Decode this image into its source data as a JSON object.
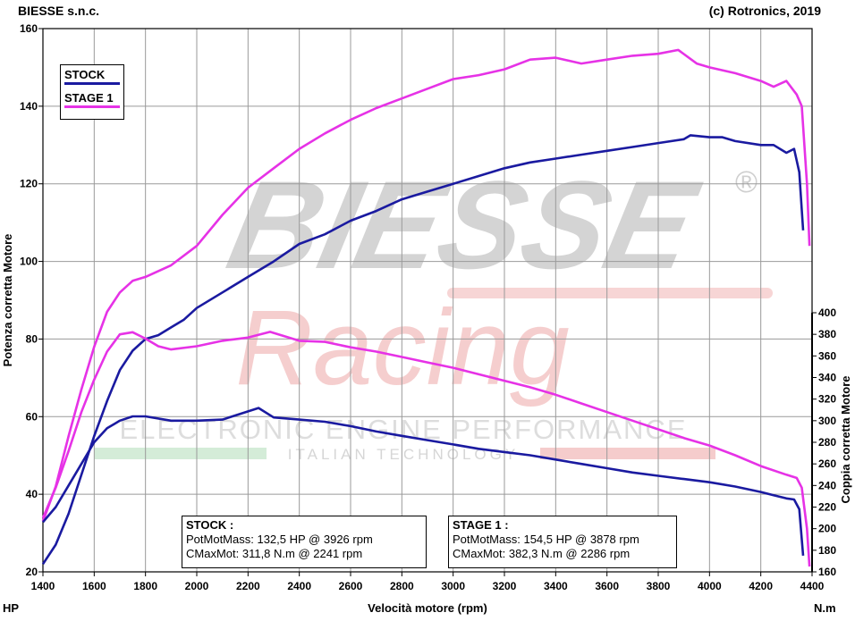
{
  "header": {
    "left": "BIESSE s.n.c.",
    "right": "(c) Rotronics, 2019"
  },
  "watermark": {
    "brand": "BIESSE",
    "registered": "®",
    "script": "Racing",
    "line1": "ELECTRONIC ENGINE PERFORMANCE",
    "line2": "ITALIAN TECHNOLOGY"
  },
  "legend": {
    "stock_label": "STOCK",
    "stage_label": "STAGE 1"
  },
  "info": {
    "stock": {
      "title": "STOCK :",
      "power": "PotMotMass: 132,5 HP @ 3926 rpm",
      "torque": "CMaxMot: 311,8 N.m @ 2241 rpm"
    },
    "stage": {
      "title": "STAGE 1 :",
      "power": "PotMotMass: 154,5 HP @ 3878 rpm",
      "torque": "CMaxMot: 382,3 N.m @ 2286 rpm"
    }
  },
  "chart_data": {
    "type": "line",
    "xlabel": "Velocità motore (rpm)",
    "ylabel_left": "Potenza corretta Motore",
    "ylabel_right": "Coppia corretta Motore",
    "unit_left": "HP",
    "unit_right": "N.m",
    "xlim": [
      1400,
      4400
    ],
    "ylim_left": [
      20,
      160
    ],
    "ylim_right": [
      160,
      400
    ],
    "x_ticks": [
      1400,
      1600,
      1800,
      2000,
      2200,
      2400,
      2600,
      2800,
      3000,
      3200,
      3400,
      3600,
      3800,
      4000,
      4200,
      4400
    ],
    "y_ticks_left": [
      20,
      40,
      60,
      80,
      100,
      120,
      140,
      160
    ],
    "y_ticks_right": [
      160,
      180,
      200,
      220,
      240,
      260,
      280,
      300,
      320,
      340,
      360,
      380,
      400
    ],
    "grid": true,
    "legend_position": "top-left",
    "colors": {
      "stock": "#1a1aa0",
      "stage": "#e632e6"
    },
    "series": [
      {
        "name": "STOCK",
        "axis": "left",
        "kind": "power",
        "points": [
          [
            1400,
            22
          ],
          [
            1450,
            27
          ],
          [
            1500,
            35
          ],
          [
            1550,
            45
          ],
          [
            1600,
            55
          ],
          [
            1650,
            64
          ],
          [
            1700,
            72
          ],
          [
            1750,
            77
          ],
          [
            1800,
            80
          ],
          [
            1850,
            81
          ],
          [
            1900,
            83
          ],
          [
            1950,
            85
          ],
          [
            2000,
            88
          ],
          [
            2100,
            92
          ],
          [
            2200,
            96
          ],
          [
            2300,
            100
          ],
          [
            2400,
            104.5
          ],
          [
            2500,
            107
          ],
          [
            2600,
            110.5
          ],
          [
            2700,
            113
          ],
          [
            2800,
            116
          ],
          [
            2900,
            118
          ],
          [
            3000,
            120
          ],
          [
            3100,
            122
          ],
          [
            3200,
            124
          ],
          [
            3300,
            125.5
          ],
          [
            3400,
            126.5
          ],
          [
            3500,
            127.5
          ],
          [
            3600,
            128.5
          ],
          [
            3700,
            129.5
          ],
          [
            3800,
            130.5
          ],
          [
            3900,
            131.5
          ],
          [
            3926,
            132.5
          ],
          [
            4000,
            132
          ],
          [
            4050,
            132
          ],
          [
            4100,
            131
          ],
          [
            4200,
            130
          ],
          [
            4250,
            130
          ],
          [
            4300,
            128
          ],
          [
            4330,
            129
          ],
          [
            4350,
            123
          ],
          [
            4365,
            108
          ]
        ]
      },
      {
        "name": "STAGE 1",
        "axis": "left",
        "kind": "power",
        "points": [
          [
            1400,
            33
          ],
          [
            1450,
            42
          ],
          [
            1500,
            55
          ],
          [
            1550,
            67
          ],
          [
            1600,
            78
          ],
          [
            1650,
            87
          ],
          [
            1700,
            92
          ],
          [
            1750,
            95
          ],
          [
            1800,
            96
          ],
          [
            1900,
            99
          ],
          [
            2000,
            104
          ],
          [
            2100,
            112
          ],
          [
            2200,
            119
          ],
          [
            2300,
            124
          ],
          [
            2400,
            129
          ],
          [
            2500,
            133
          ],
          [
            2600,
            136.5
          ],
          [
            2700,
            139.5
          ],
          [
            2800,
            142
          ],
          [
            2900,
            144.5
          ],
          [
            3000,
            147
          ],
          [
            3100,
            148
          ],
          [
            3200,
            149.5
          ],
          [
            3300,
            152
          ],
          [
            3400,
            152.5
          ],
          [
            3500,
            151
          ],
          [
            3600,
            152
          ],
          [
            3700,
            153
          ],
          [
            3800,
            153.5
          ],
          [
            3878,
            154.5
          ],
          [
            3950,
            151
          ],
          [
            4000,
            150
          ],
          [
            4100,
            148.5
          ],
          [
            4200,
            146.5
          ],
          [
            4250,
            145
          ],
          [
            4300,
            146.5
          ],
          [
            4340,
            143
          ],
          [
            4360,
            140
          ],
          [
            4380,
            120
          ],
          [
            4390,
            104
          ]
        ]
      },
      {
        "name": "STOCK",
        "axis": "right",
        "kind": "torque",
        "points": [
          [
            1400,
            206
          ],
          [
            1450,
            220
          ],
          [
            1500,
            240
          ],
          [
            1550,
            260
          ],
          [
            1600,
            280
          ],
          [
            1650,
            293
          ],
          [
            1700,
            300
          ],
          [
            1750,
            304
          ],
          [
            1800,
            304
          ],
          [
            1900,
            300
          ],
          [
            2000,
            300
          ],
          [
            2100,
            301
          ],
          [
            2241,
            311.8
          ],
          [
            2300,
            303
          ],
          [
            2400,
            301
          ],
          [
            2500,
            299
          ],
          [
            2600,
            295
          ],
          [
            2700,
            290
          ],
          [
            2800,
            286
          ],
          [
            2900,
            282
          ],
          [
            3000,
            278
          ],
          [
            3100,
            274
          ],
          [
            3200,
            271
          ],
          [
            3300,
            268
          ],
          [
            3400,
            264
          ],
          [
            3500,
            260
          ],
          [
            3600,
            256
          ],
          [
            3700,
            252
          ],
          [
            3800,
            249
          ],
          [
            3900,
            246
          ],
          [
            4000,
            243
          ],
          [
            4100,
            239
          ],
          [
            4200,
            234
          ],
          [
            4250,
            231
          ],
          [
            4300,
            228
          ],
          [
            4330,
            227
          ],
          [
            4350,
            218
          ],
          [
            4365,
            175
          ]
        ]
      },
      {
        "name": "STAGE 1",
        "axis": "right",
        "kind": "torque",
        "points": [
          [
            1400,
            210
          ],
          [
            1450,
            238
          ],
          [
            1500,
            272
          ],
          [
            1550,
            308
          ],
          [
            1600,
            338
          ],
          [
            1650,
            364
          ],
          [
            1700,
            380
          ],
          [
            1750,
            382
          ],
          [
            1800,
            376
          ],
          [
            1850,
            369
          ],
          [
            1900,
            366
          ],
          [
            2000,
            369
          ],
          [
            2100,
            374
          ],
          [
            2200,
            377
          ],
          [
            2286,
            382.3
          ],
          [
            2400,
            374
          ],
          [
            2500,
            373
          ],
          [
            2600,
            368
          ],
          [
            2700,
            364
          ],
          [
            2800,
            359
          ],
          [
            2900,
            354
          ],
          [
            3000,
            349
          ],
          [
            3100,
            343
          ],
          [
            3200,
            337
          ],
          [
            3300,
            331
          ],
          [
            3400,
            324
          ],
          [
            3500,
            316
          ],
          [
            3600,
            308
          ],
          [
            3700,
            300
          ],
          [
            3800,
            292
          ],
          [
            3900,
            284
          ],
          [
            4000,
            277
          ],
          [
            4100,
            268
          ],
          [
            4200,
            258
          ],
          [
            4300,
            250
          ],
          [
            4340,
            247
          ],
          [
            4360,
            238
          ],
          [
            4380,
            200
          ],
          [
            4390,
            165
          ]
        ]
      }
    ]
  }
}
